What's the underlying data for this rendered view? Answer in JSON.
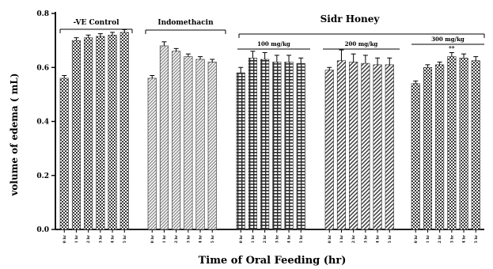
{
  "chart_data": {
    "type": "bar",
    "ylabel": "volume of edema ( mL)",
    "xlabel": "Time of Oral Feeding (hr)",
    "ylim": [
      0,
      0.8
    ],
    "yticks": [
      "0.0",
      "0.2",
      "0.4",
      "0.6",
      "0.8"
    ],
    "grid": false,
    "time_labels": [
      "0 hr",
      "1 hr",
      "2 hr",
      "3 hr",
      "4 hr",
      "5 hr"
    ],
    "top_label": "Sidr Honey",
    "groups": [
      {
        "label": "-VE Control",
        "pattern": "checker",
        "values": [
          0.56,
          0.7,
          0.71,
          0.715,
          0.72,
          0.73
        ],
        "errors": [
          0.01,
          0.01,
          0.01,
          0.01,
          0.01,
          0.01
        ],
        "sig": [
          "",
          "",
          "",
          "",
          "",
          ""
        ]
      },
      {
        "label": "Indomethacin",
        "pattern": "hatch",
        "values": [
          0.56,
          0.68,
          0.66,
          0.64,
          0.63,
          0.62
        ],
        "errors": [
          0.01,
          0.015,
          0.01,
          0.01,
          0.01,
          0.01
        ],
        "sig": [
          "",
          "",
          "",
          "",
          "",
          ""
        ]
      },
      {
        "label": "100 mg/kg",
        "pattern": "grid",
        "values": [
          0.58,
          0.635,
          0.63,
          0.62,
          0.62,
          0.615
        ],
        "errors": [
          0.02,
          0.025,
          0.025,
          0.025,
          0.025,
          0.02
        ],
        "sig": [
          "",
          "",
          "",
          "",
          "",
          ""
        ]
      },
      {
        "label": "200 mg/kg",
        "pattern": "diag",
        "values": [
          0.59,
          0.625,
          0.62,
          0.615,
          0.61,
          0.61
        ],
        "errors": [
          0.01,
          0.04,
          0.03,
          0.03,
          0.025,
          0.025
        ],
        "sig": [
          "",
          "",
          "",
          "",
          "",
          ""
        ]
      },
      {
        "label": "300 mg/kg",
        "pattern": "checker",
        "values": [
          0.54,
          0.6,
          0.61,
          0.64,
          0.635,
          0.625
        ],
        "errors": [
          0.01,
          0.01,
          0.01,
          0.015,
          0.015,
          0.015
        ],
        "sig": [
          "",
          "",
          "",
          "**",
          "",
          ""
        ]
      }
    ]
  },
  "colors": {
    "bar_fill": "#3a3a3a",
    "bar_bg": "#ffffff",
    "axis": "#000000"
  }
}
